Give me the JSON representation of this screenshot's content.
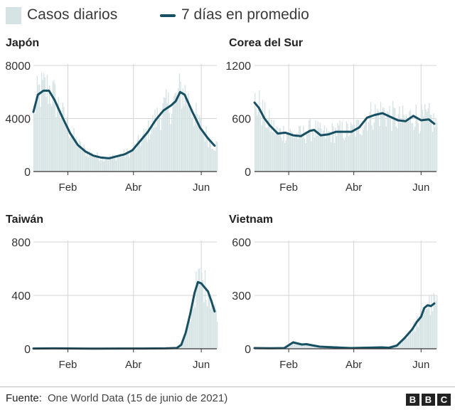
{
  "legend": {
    "bars_label": "Casos diarios",
    "line_label": "7 días en promedio"
  },
  "colors": {
    "bars": "#d6e3e4",
    "line": "#174f63",
    "grid": "#d4d4d4",
    "axis": "#333333"
  },
  "source": {
    "label": "Fuente:",
    "text": "One World Data (15 de junio de 2021)"
  },
  "logo": [
    "B",
    "B",
    "C"
  ],
  "chart_data": [
    {
      "type": "bar+line",
      "title": "Japón",
      "yticks": [
        0,
        4000,
        8000
      ],
      "ytick_labels": [
        "0",
        "4000",
        "8000"
      ],
      "ylim": [
        0,
        8000
      ],
      "xticks": [
        "Feb",
        "Abr",
        "Jun"
      ],
      "x_range": [
        "2021-01-01",
        "2021-06-15"
      ],
      "x_tick_dates": [
        "2021-02-01",
        "2021-04-01",
        "2021-06-01"
      ],
      "line_points": [
        [
          "2021-01-01",
          4500
        ],
        [
          "2021-01-05",
          5800
        ],
        [
          "2021-01-10",
          6100
        ],
        [
          "2021-01-15",
          6100
        ],
        [
          "2021-01-20",
          5400
        ],
        [
          "2021-01-27",
          4100
        ],
        [
          "2021-02-03",
          2900
        ],
        [
          "2021-02-10",
          2000
        ],
        [
          "2021-02-17",
          1500
        ],
        [
          "2021-02-24",
          1200
        ],
        [
          "2021-03-03",
          1050
        ],
        [
          "2021-03-10",
          1000
        ],
        [
          "2021-03-17",
          1150
        ],
        [
          "2021-03-24",
          1300
        ],
        [
          "2021-03-31",
          1600
        ],
        [
          "2021-04-07",
          2300
        ],
        [
          "2021-04-14",
          3000
        ],
        [
          "2021-04-21",
          3900
        ],
        [
          "2021-04-28",
          4600
        ],
        [
          "2021-05-05",
          5000
        ],
        [
          "2021-05-09",
          5300
        ],
        [
          "2021-05-13",
          6000
        ],
        [
          "2021-05-17",
          5800
        ],
        [
          "2021-05-24",
          4500
        ],
        [
          "2021-05-31",
          3300
        ],
        [
          "2021-06-07",
          2500
        ],
        [
          "2021-06-13",
          1950
        ]
      ]
    },
    {
      "type": "bar+line",
      "title": "Corea del Sur",
      "yticks": [
        0,
        600,
        1200
      ],
      "ytick_labels": [
        "0",
        "600",
        "1200"
      ],
      "ylim": [
        0,
        1200
      ],
      "xticks": [
        "Feb",
        "Abr",
        "Jun"
      ],
      "x_range": [
        "2021-01-01",
        "2021-06-15"
      ],
      "x_tick_dates": [
        "2021-02-01",
        "2021-04-01",
        "2021-06-01"
      ],
      "line_points": [
        [
          "2021-01-01",
          780
        ],
        [
          "2021-01-05",
          720
        ],
        [
          "2021-01-10",
          600
        ],
        [
          "2021-01-15",
          520
        ],
        [
          "2021-01-22",
          430
        ],
        [
          "2021-01-29",
          440
        ],
        [
          "2021-02-05",
          410
        ],
        [
          "2021-02-12",
          400
        ],
        [
          "2021-02-20",
          460
        ],
        [
          "2021-02-24",
          470
        ],
        [
          "2021-03-02",
          410
        ],
        [
          "2021-03-09",
          420
        ],
        [
          "2021-03-16",
          450
        ],
        [
          "2021-03-23",
          450
        ],
        [
          "2021-03-30",
          450
        ],
        [
          "2021-04-06",
          500
        ],
        [
          "2021-04-13",
          610
        ],
        [
          "2021-04-20",
          640
        ],
        [
          "2021-04-27",
          660
        ],
        [
          "2021-05-04",
          620
        ],
        [
          "2021-05-11",
          580
        ],
        [
          "2021-05-18",
          570
        ],
        [
          "2021-05-25",
          630
        ],
        [
          "2021-06-01",
          580
        ],
        [
          "2021-06-08",
          590
        ],
        [
          "2021-06-13",
          540
        ]
      ]
    },
    {
      "type": "bar+line",
      "title": "Taiwán",
      "yticks": [
        0,
        400,
        800
      ],
      "ytick_labels": [
        "0",
        "400",
        "800"
      ],
      "ylim": [
        0,
        800
      ],
      "xticks": [
        "Feb",
        "Abr",
        "Jun"
      ],
      "x_range": [
        "2021-01-01",
        "2021-06-15"
      ],
      "x_tick_dates": [
        "2021-02-01",
        "2021-04-01",
        "2021-06-01"
      ],
      "line_points": [
        [
          "2021-01-01",
          2
        ],
        [
          "2021-01-20",
          3
        ],
        [
          "2021-02-10",
          2
        ],
        [
          "2021-03-01",
          1
        ],
        [
          "2021-03-20",
          2
        ],
        [
          "2021-04-10",
          2
        ],
        [
          "2021-04-30",
          3
        ],
        [
          "2021-05-10",
          6
        ],
        [
          "2021-05-14",
          30
        ],
        [
          "2021-05-18",
          120
        ],
        [
          "2021-05-22",
          260
        ],
        [
          "2021-05-26",
          420
        ],
        [
          "2021-05-29",
          500
        ],
        [
          "2021-06-01",
          490
        ],
        [
          "2021-06-04",
          460
        ],
        [
          "2021-06-07",
          430
        ],
        [
          "2021-06-10",
          360
        ],
        [
          "2021-06-13",
          280
        ]
      ]
    },
    {
      "type": "bar+line",
      "title": "Vietnam",
      "yticks": [
        0,
        300,
        600
      ],
      "ytick_labels": [
        "0",
        "300",
        "600"
      ],
      "ylim": [
        0,
        600
      ],
      "xticks": [
        "Feb",
        "Abr",
        "Jun"
      ],
      "x_range": [
        "2021-01-01",
        "2021-06-15"
      ],
      "x_tick_dates": [
        "2021-02-01",
        "2021-04-01",
        "2021-06-01"
      ],
      "line_points": [
        [
          "2021-01-01",
          4
        ],
        [
          "2021-01-15",
          3
        ],
        [
          "2021-01-28",
          4
        ],
        [
          "2021-02-01",
          20
        ],
        [
          "2021-02-05",
          36
        ],
        [
          "2021-02-09",
          30
        ],
        [
          "2021-02-13",
          24
        ],
        [
          "2021-02-17",
          26
        ],
        [
          "2021-02-22",
          20
        ],
        [
          "2021-03-01",
          12
        ],
        [
          "2021-03-15",
          8
        ],
        [
          "2021-03-29",
          4
        ],
        [
          "2021-04-12",
          6
        ],
        [
          "2021-04-26",
          8
        ],
        [
          "2021-05-03",
          6
        ],
        [
          "2021-05-10",
          18
        ],
        [
          "2021-05-17",
          60
        ],
        [
          "2021-05-24",
          110
        ],
        [
          "2021-05-28",
          150
        ],
        [
          "2021-06-01",
          180
        ],
        [
          "2021-06-04",
          230
        ],
        [
          "2021-06-07",
          245
        ],
        [
          "2021-06-10",
          240
        ],
        [
          "2021-06-13",
          255
        ]
      ]
    }
  ]
}
